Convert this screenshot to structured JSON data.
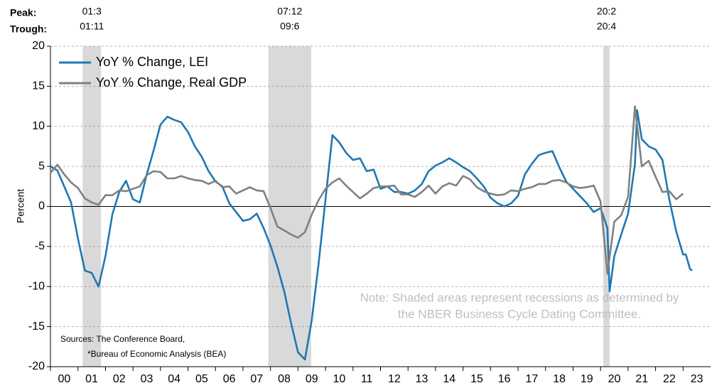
{
  "chart_data": {
    "type": "line",
    "y_label": "Percent",
    "xlim": [
      2000,
      2024
    ],
    "ylim": [
      -20,
      20
    ],
    "yticks": [
      -20,
      -15,
      -10,
      -5,
      0,
      5,
      10,
      15,
      20
    ],
    "xticks": [
      {
        "value": 2000,
        "label": "00"
      },
      {
        "value": 2001,
        "label": "01"
      },
      {
        "value": 2002,
        "label": "02"
      },
      {
        "value": 2003,
        "label": "03"
      },
      {
        "value": 2004,
        "label": "04"
      },
      {
        "value": 2005,
        "label": "05"
      },
      {
        "value": 2006,
        "label": "06"
      },
      {
        "value": 2007,
        "label": "07"
      },
      {
        "value": 2008,
        "label": "08"
      },
      {
        "value": 2009,
        "label": "09"
      },
      {
        "value": 2010,
        "label": "10"
      },
      {
        "value": 2011,
        "label": "11"
      },
      {
        "value": 2012,
        "label": "12"
      },
      {
        "value": 2013,
        "label": "13"
      },
      {
        "value": 2014,
        "label": "14"
      },
      {
        "value": 2015,
        "label": "15"
      },
      {
        "value": 2016,
        "label": "16"
      },
      {
        "value": 2017,
        "label": "17"
      },
      {
        "value": 2018,
        "label": "18"
      },
      {
        "value": 2019,
        "label": "19"
      },
      {
        "value": 2020,
        "label": "20"
      },
      {
        "value": 2021,
        "label": "21"
      },
      {
        "value": 2022,
        "label": "22"
      },
      {
        "value": 2023,
        "label": "23"
      }
    ],
    "grid": true,
    "zero_line": true,
    "legend": "top-left",
    "peak_label": "Peak:",
    "trough_label": "Trough:",
    "recessions": [
      {
        "start": 2001.17,
        "end": 2001.84,
        "peak": "01:3",
        "trough": "01:11"
      },
      {
        "start": 2007.92,
        "end": 2009.48,
        "peak": "07:12",
        "trough": "09:6"
      },
      {
        "start": 2020.1,
        "end": 2020.33,
        "peak": "20:2",
        "trough": "20:4"
      }
    ],
    "note": [
      "Note: Shaded areas represent recessions as determined by",
      "the NBER Business Cycle Dating Committee."
    ],
    "sources": [
      "Sources: The Conference Board,",
      "*Bureau of Economic Analysis (BEA)"
    ],
    "series": [
      {
        "name": "YoY % Change, LEI",
        "color": "#1f78b4",
        "x": [
          2000,
          2000.25,
          2000.5,
          2000.75,
          2001,
          2001.25,
          2001.5,
          2001.75,
          2002,
          2002.25,
          2002.5,
          2002.75,
          2003,
          2003.25,
          2003.5,
          2003.75,
          2004,
          2004.25,
          2004.5,
          2004.75,
          2005,
          2005.25,
          2005.5,
          2005.75,
          2006,
          2006.25,
          2006.5,
          2006.75,
          2007,
          2007.25,
          2007.5,
          2007.75,
          2008,
          2008.25,
          2008.5,
          2008.75,
          2009,
          2009.25,
          2009.5,
          2009.75,
          2010,
          2010.25,
          2010.5,
          2010.75,
          2011,
          2011.25,
          2011.5,
          2011.75,
          2012,
          2012.25,
          2012.5,
          2012.75,
          2013,
          2013.25,
          2013.5,
          2013.75,
          2014,
          2014.25,
          2014.5,
          2014.75,
          2015,
          2015.25,
          2015.5,
          2015.75,
          2016,
          2016.25,
          2016.5,
          2016.75,
          2017,
          2017.25,
          2017.5,
          2017.75,
          2018,
          2018.25,
          2018.5,
          2018.75,
          2019,
          2019.25,
          2019.5,
          2019.75,
          2020,
          2020.25,
          2020.33,
          2020.5,
          2020.75,
          2021,
          2021.25,
          2021.33,
          2021.5,
          2021.75,
          2022,
          2022.25,
          2022.5,
          2022.75,
          2023,
          2023.1,
          2023.25,
          2023.33
        ],
        "values": [
          5.0,
          4.5,
          2.5,
          0.5,
          -4,
          -8,
          -8.3,
          -10,
          -6.2,
          -1,
          1.8,
          3.2,
          0.9,
          0.5,
          4,
          7,
          10.2,
          11.2,
          10.8,
          10.5,
          9.3,
          7.5,
          6.2,
          4.4,
          3.1,
          2.5,
          0.4,
          -0.7,
          -1.8,
          -1.6,
          -0.9,
          -2.7,
          -4.9,
          -7.5,
          -10.6,
          -14.6,
          -18.2,
          -19.1,
          -14.2,
          -7.1,
          0.9,
          8.9,
          8,
          6.7,
          5.8,
          6,
          4.4,
          4.6,
          2.2,
          2.5,
          1.8,
          1.8,
          1.6,
          2,
          2.8,
          4.4,
          5.1,
          5.5,
          6,
          5.5,
          4.9,
          4.4,
          3.5,
          2.5,
          1.1,
          0.4,
          0,
          0.4,
          1.3,
          4,
          5.3,
          6.4,
          6.7,
          6.9,
          4.9,
          3.1,
          2.2,
          1.3,
          0.4,
          -0.7,
          -0.2,
          -2.7,
          -10.6,
          -6.2,
          -3.5,
          -0.9,
          5.3,
          12,
          8.4,
          7.5,
          7.1,
          5.8,
          0.9,
          -3.1,
          -6,
          -6,
          -7.8,
          -8
        ]
      },
      {
        "name": "YoY % Change, Real GDP",
        "color": "#808080",
        "x": [
          2000,
          2000.25,
          2000.5,
          2000.75,
          2001,
          2001.25,
          2001.5,
          2001.75,
          2002,
          2002.25,
          2002.5,
          2002.75,
          2003,
          2003.25,
          2003.5,
          2003.75,
          2004,
          2004.25,
          2004.5,
          2004.75,
          2005,
          2005.25,
          2005.5,
          2005.75,
          2006,
          2006.25,
          2006.5,
          2006.75,
          2007,
          2007.25,
          2007.5,
          2007.75,
          2008,
          2008.25,
          2008.5,
          2008.75,
          2009,
          2009.25,
          2009.5,
          2009.75,
          2010,
          2010.25,
          2010.5,
          2010.75,
          2011,
          2011.25,
          2011.5,
          2011.75,
          2012,
          2012.25,
          2012.5,
          2012.75,
          2013,
          2013.25,
          2013.5,
          2013.75,
          2014,
          2014.25,
          2014.5,
          2014.75,
          2015,
          2015.25,
          2015.5,
          2015.75,
          2016,
          2016.25,
          2016.5,
          2016.75,
          2017,
          2017.25,
          2017.5,
          2017.75,
          2018,
          2018.25,
          2018.5,
          2018.75,
          2019,
          2019.25,
          2019.5,
          2019.75,
          2020,
          2020.25,
          2020.5,
          2020.75,
          2021,
          2021.25,
          2021.5,
          2021.75,
          2022,
          2022.25,
          2022.5,
          2022.75,
          2023
        ],
        "values": [
          4.2,
          5.2,
          4.0,
          3.0,
          2.3,
          1.0,
          0.5,
          0.2,
          1.4,
          1.4,
          2.0,
          1.9,
          2.2,
          2.5,
          3.9,
          4.4,
          4.3,
          3.5,
          3.5,
          3.8,
          3.5,
          3.3,
          3.2,
          2.8,
          3.2,
          2.4,
          2.5,
          1.6,
          2.0,
          2.4,
          2.0,
          1.9,
          -0.2,
          -2.5,
          -3.0,
          -3.5,
          -3.9,
          -3.2,
          -1.0,
          0.8,
          2.2,
          3.0,
          3.5,
          2.6,
          1.8,
          1.0,
          1.6,
          2.3,
          2.5,
          2.5,
          2.6,
          1.5,
          1.5,
          1.2,
          1.8,
          2.6,
          1.6,
          2.5,
          2.9,
          2.6,
          3.8,
          3.4,
          2.4,
          1.9,
          1.6,
          1.4,
          1.5,
          2.0,
          1.9,
          2.2,
          2.4,
          2.8,
          2.8,
          3.2,
          3.3,
          3.0,
          2.5,
          2.3,
          2.4,
          2.6,
          0.6,
          -8.4,
          -1.9,
          -1.1,
          1.2,
          12.5,
          5.0,
          5.7,
          3.7,
          1.8,
          1.9,
          0.9,
          1.6
        ]
      }
    ]
  }
}
